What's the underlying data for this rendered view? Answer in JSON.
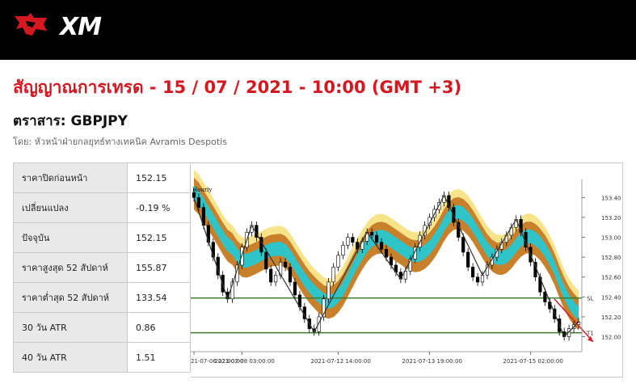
{
  "brand": {
    "name": "XM"
  },
  "headline": "สัญญาณการเทรด - 15 / 07 / 2021 - 10:00 (GMT +3)",
  "instrument_label": "ตราสาร: GBPJPY",
  "author": "โดย: หัวหน้าฝ่ายกลยุทธ์ทางเทคนิค Avramis Despotis",
  "stats": [
    {
      "label": "ราคาปิดก่อนหน้า",
      "value": "152.15"
    },
    {
      "label": "เปลี่ยนแปลง",
      "value": "-0.19 %"
    },
    {
      "label": "ปัจจุบัน",
      "value": "152.15"
    },
    {
      "label": "ราคาสูงสุด 52 สัปดาห์",
      "value": "155.87"
    },
    {
      "label": "ราคาต่ำสุด 52 สัปดาห์",
      "value": "133.54"
    },
    {
      "label": "30 วัน ATR",
      "value": "0.86"
    },
    {
      "label": "40 วัน ATR",
      "value": "1.51"
    }
  ],
  "chart_data": {
    "type": "candlestick",
    "timeframe_label": "Hourly",
    "y_ticks": [
      "153.40",
      "153.20",
      "153.00",
      "152.80",
      "152.60",
      "152.40",
      "152.20",
      "152.00"
    ],
    "ylim": [
      151.85,
      153.5
    ],
    "x_ticks": [
      "21-07-06 22:00:00",
      "2021-07-08 03:00:00",
      "2021-07-12 14:00:00",
      "2021-07-13 19:00:00",
      "2021-07-15 02:00:00"
    ],
    "levels": [
      {
        "name": "SL",
        "value": 152.39,
        "color": "#3a7a2a"
      },
      {
        "name": "T1",
        "value": 152.04,
        "color": "#3a7a2a"
      }
    ],
    "closes": [
      153.4,
      153.3,
      153.12,
      152.95,
      152.8,
      152.62,
      152.45,
      152.38,
      152.55,
      152.72,
      152.9,
      153.05,
      153.12,
      153.0,
      152.85,
      152.68,
      152.55,
      152.62,
      152.75,
      152.7,
      152.55,
      152.42,
      152.3,
      152.18,
      152.08,
      152.05,
      152.2,
      152.38,
      152.55,
      152.7,
      152.82,
      152.92,
      153.0,
      152.95,
      152.88,
      152.96,
      153.05,
      153.02,
      152.95,
      152.88,
      152.8,
      152.72,
      152.65,
      152.58,
      152.66,
      152.78,
      152.9,
      153.02,
      153.12,
      153.2,
      153.28,
      153.35,
      153.42,
      153.3,
      153.15,
      153.0,
      152.85,
      152.7,
      152.6,
      152.55,
      152.62,
      152.72,
      152.8,
      152.88,
      152.95,
      153.02,
      153.1,
      153.18,
      153.05,
      152.9,
      152.75,
      152.6,
      152.45,
      152.35,
      152.28,
      152.18,
      152.05,
      152.0,
      152.08,
      152.12,
      152.15
    ],
    "band_colors": {
      "outer": "#c8812a",
      "inner": "#2ec4c8",
      "light": "#f7e38a"
    },
    "zigzag_color": "#333333",
    "arrow_color": "#d0202a"
  }
}
